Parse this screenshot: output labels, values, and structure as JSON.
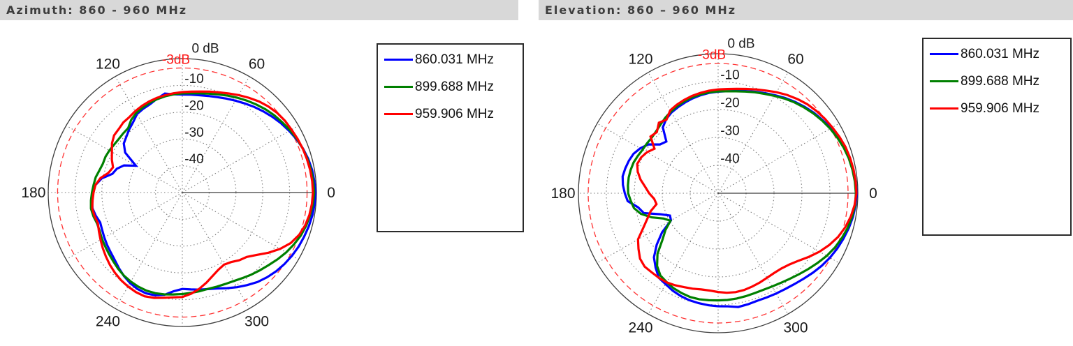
{
  "headers": {
    "azimuth": "Azimuth: 860 - 960 MHz",
    "elevation": "Elevation: 860 – 960 MHz",
    "bg_color": "#d8d8d8",
    "text_color": "#3d3d3d"
  },
  "legend": {
    "entries": [
      {
        "label": "860.031 MHz",
        "color": "#0000ff"
      },
      {
        "label": "899.688 MHz",
        "color": "#008000"
      },
      {
        "label": "959.906 MHz",
        "color": "#ff0000"
      }
    ]
  },
  "palette": {
    "grid": "#7a7a7a",
    "axis": "#3c3c3c",
    "threshold": "#ff3232",
    "threshold_text": "#ff1a1a",
    "tick_text": "#1a1a1a"
  },
  "chart_data": [
    {
      "type": "polar-line",
      "title": "Azimuth: 860 - 960 MHz",
      "angle_unit": "deg",
      "angle_ticks_deg": [
        0,
        60,
        120,
        180,
        240,
        300
      ],
      "angle_tick_labels": [
        "0",
        "60",
        "120",
        "180",
        "240",
        "300"
      ],
      "spoke_step_deg": 30,
      "r_axis": {
        "max_db": 0,
        "min_db": -50,
        "outer_label": "0 dB",
        "ticks_db": [
          -10,
          -20,
          -30,
          -40
        ],
        "tick_labels": [
          "-10",
          "-20",
          "-30",
          "-40"
        ],
        "threshold_db": -3,
        "threshold_label": "-3dB",
        "grid": "dotted rings every 10 dB, dotted spokes every 30 deg"
      },
      "angles_deg": [
        0,
        5,
        10,
        15,
        20,
        25,
        30,
        35,
        40,
        45,
        50,
        55,
        60,
        65,
        70,
        75,
        80,
        85,
        90,
        95,
        100,
        105,
        110,
        115,
        120,
        125,
        130,
        135,
        140,
        145,
        150,
        155,
        160,
        165,
        170,
        175,
        180,
        185,
        190,
        195,
        200,
        205,
        210,
        215,
        220,
        225,
        230,
        235,
        240,
        245,
        250,
        255,
        260,
        265,
        270,
        275,
        280,
        285,
        290,
        295,
        300,
        305,
        310,
        315,
        320,
        325,
        330,
        335,
        340,
        345,
        350,
        355
      ],
      "series": [
        {
          "name": "860.031 MHz",
          "color": "#0000ff",
          "db": [
            -0.4,
            -0.6,
            -0.9,
            -1.4,
            -2.1,
            -3.0,
            -4.0,
            -5.0,
            -6.1,
            -7.2,
            -8.3,
            -9.4,
            -10.4,
            -11.3,
            -12.1,
            -12.7,
            -13.1,
            -13.3,
            -13.4,
            -13.2,
            -12.5,
            -13.7,
            -14.9,
            -15.5,
            -16.2,
            -18.0,
            -19.2,
            -20.5,
            -21.5,
            -24.0,
            -30.0,
            -26.0,
            -24.0,
            -23.0,
            -19.5,
            -17.5,
            -16.6,
            -16.2,
            -16.0,
            -16.6,
            -17.4,
            -17.0,
            -16.4,
            -15.8,
            -15.2,
            -14.4,
            -13.2,
            -12.0,
            -11.0,
            -10.3,
            -10.0,
            -10.3,
            -11.2,
            -13.0,
            -14.0,
            -13.7,
            -13.2,
            -12.7,
            -11.9,
            -10.6,
            -9.2,
            -7.8,
            -6.4,
            -5.3,
            -4.3,
            -3.5,
            -2.8,
            -2.2,
            -1.7,
            -1.2,
            -0.8,
            -0.5
          ]
        },
        {
          "name": "899.688 MHz",
          "color": "#008000",
          "db": [
            -0.8,
            -1.0,
            -1.3,
            -1.7,
            -2.2,
            -2.8,
            -3.6,
            -4.4,
            -5.2,
            -6.1,
            -7.1,
            -8.1,
            -9.1,
            -10.1,
            -11.0,
            -11.8,
            -12.4,
            -12.8,
            -13.0,
            -13.2,
            -13.5,
            -13.9,
            -14.4,
            -15.0,
            -15.7,
            -16.8,
            -18.6,
            -18.8,
            -19.0,
            -18.9,
            -18.6,
            -18.4,
            -18.5,
            -18.0,
            -17.2,
            -16.8,
            -16.3,
            -15.8,
            -15.4,
            -15.7,
            -16.2,
            -16.0,
            -15.4,
            -14.9,
            -14.3,
            -13.6,
            -12.8,
            -12.1,
            -11.6,
            -11.2,
            -11.0,
            -11.1,
            -11.4,
            -11.8,
            -12.1,
            -12.4,
            -12.6,
            -12.8,
            -12.6,
            -12.3,
            -11.8,
            -11.0,
            -10.0,
            -9.0,
            -7.9,
            -6.6,
            -5.3,
            -4.1,
            -3.0,
            -2.2,
            -1.6,
            -1.1
          ]
        },
        {
          "name": "959.906 MHz",
          "color": "#ff0000",
          "db": [
            -1.3,
            -1.4,
            -1.6,
            -1.9,
            -2.2,
            -2.6,
            -3.0,
            -3.3,
            -3.8,
            -4.6,
            -5.6,
            -6.8,
            -8.0,
            -9.2,
            -10.2,
            -11.0,
            -11.7,
            -12.2,
            -12.5,
            -12.8,
            -13.1,
            -13.4,
            -13.8,
            -14.3,
            -14.9,
            -15.6,
            -15.8,
            -16.5,
            -16.8,
            -18.0,
            -19.7,
            -21.0,
            -22.5,
            -21.5,
            -19.0,
            -17.5,
            -16.9,
            -16.4,
            -15.9,
            -16.1,
            -16.5,
            -15.7,
            -14.8,
            -13.8,
            -12.8,
            -11.8,
            -10.9,
            -10.1,
            -9.5,
            -9.0,
            -8.8,
            -9.3,
            -10.1,
            -10.7,
            -11.0,
            -12.1,
            -13.5,
            -15.2,
            -16.9,
            -18.2,
            -18.9,
            -18.3,
            -17.0,
            -16.0,
            -13.8,
            -10.8,
            -7.9,
            -5.4,
            -3.7,
            -2.6,
            -1.9,
            -1.5
          ]
        }
      ]
    },
    {
      "type": "polar-line",
      "title": "Elevation: 860 – 960 MHz",
      "angle_unit": "deg",
      "angle_ticks_deg": [
        0,
        60,
        120,
        180,
        240,
        300
      ],
      "angle_tick_labels": [
        "0",
        "60",
        "120",
        "180",
        "240",
        "300"
      ],
      "spoke_step_deg": 30,
      "r_axis": {
        "max_db": 0,
        "min_db": -50,
        "outer_label": "0 dB",
        "ticks_db": [
          -10,
          -20,
          -30,
          -40
        ],
        "tick_labels": [
          "-10",
          "-20",
          "-30",
          "-40"
        ],
        "threshold_db": -3,
        "threshold_label": "-3dB",
        "grid": "dotted rings every 10 dB, dotted spokes every 30 deg"
      },
      "angles_deg": [
        0,
        5,
        10,
        15,
        20,
        25,
        30,
        35,
        40,
        45,
        50,
        55,
        60,
        65,
        70,
        75,
        80,
        85,
        90,
        95,
        100,
        105,
        110,
        115,
        120,
        125,
        130,
        135,
        140,
        145,
        150,
        155,
        160,
        165,
        170,
        175,
        180,
        185,
        190,
        195,
        200,
        205,
        210,
        215,
        220,
        225,
        230,
        235,
        240,
        245,
        250,
        255,
        260,
        265,
        270,
        275,
        280,
        285,
        290,
        295,
        300,
        305,
        310,
        315,
        320,
        325,
        330,
        335,
        340,
        345,
        350,
        355
      ],
      "series": [
        {
          "name": "860.031 MHz",
          "color": "#0000ff",
          "db": [
            -0.4,
            -0.6,
            -0.9,
            -1.3,
            -1.9,
            -2.6,
            -3.4,
            -4.3,
            -5.2,
            -6.2,
            -7.2,
            -8.3,
            -9.4,
            -10.4,
            -11.3,
            -12.1,
            -12.8,
            -13.3,
            -13.6,
            -13.9,
            -14.3,
            -14.8,
            -15.4,
            -16.0,
            -16.6,
            -17.6,
            -19.2,
            -23.8,
            -22.8,
            -19.5,
            -17.8,
            -16.6,
            -16.0,
            -15.6,
            -15.3,
            -15.8,
            -16.6,
            -17.5,
            -20.9,
            -22.5,
            -28.0,
            -31.0,
            -30.5,
            -25.5,
            -21.3,
            -17.5,
            -15.2,
            -13.0,
            -12.4,
            -11.5,
            -10.8,
            -10.3,
            -10.0,
            -9.7,
            -9.5,
            -9.3,
            -8.6,
            -8.8,
            -9.0,
            -8.8,
            -8.5,
            -8.1,
            -7.5,
            -6.7,
            -5.7,
            -4.7,
            -3.8,
            -3.0,
            -2.3,
            -1.6,
            -1.0,
            -0.6
          ]
        },
        {
          "name": "899.688 MHz",
          "color": "#008000",
          "db": [
            -0.7,
            -0.9,
            -1.2,
            -1.6,
            -2.2,
            -2.9,
            -3.7,
            -4.6,
            -5.5,
            -6.5,
            -7.5,
            -8.6,
            -9.7,
            -10.7,
            -11.5,
            -12.3,
            -12.9,
            -13.3,
            -13.5,
            -13.7,
            -14.0,
            -14.4,
            -14.9,
            -15.5,
            -16.2,
            -17.0,
            -17.9,
            -18.6,
            -19.0,
            -18.9,
            -18.8,
            -18.3,
            -17.8,
            -17.6,
            -17.5,
            -17.6,
            -17.8,
            -18.6,
            -19.4,
            -21.4,
            -24.7,
            -28.5,
            -30.3,
            -27.0,
            -24.0,
            -19.3,
            -16.0,
            -14.0,
            -13.2,
            -12.4,
            -11.9,
            -11.5,
            -11.4,
            -11.5,
            -11.6,
            -11.6,
            -11.7,
            -11.8,
            -11.9,
            -11.8,
            -11.4,
            -10.8,
            -10.0,
            -9.0,
            -7.8,
            -6.5,
            -5.1,
            -3.9,
            -2.9,
            -2.0,
            -1.3,
            -0.8
          ]
        },
        {
          "name": "959.906 MHz",
          "color": "#ff0000",
          "db": [
            -0.5,
            -0.6,
            -0.8,
            -1.1,
            -1.5,
            -2.1,
            -2.8,
            -3.4,
            -4.1,
            -4.9,
            -5.9,
            -7.0,
            -8.2,
            -9.4,
            -10.4,
            -11.3,
            -12.0,
            -12.5,
            -12.8,
            -13.1,
            -13.5,
            -13.9,
            -14.4,
            -15.0,
            -15.7,
            -17.8,
            -17.0,
            -19.0,
            -18.4,
            -22.2,
            -20.6,
            -19.6,
            -19.2,
            -20.2,
            -21.8,
            -23.8,
            -25.3,
            -27.0,
            -27.6,
            -25.0,
            -23.0,
            -20.4,
            -16.9,
            -15.2,
            -13.5,
            -12.8,
            -13.0,
            -13.0,
            -13.1,
            -13.6,
            -14.2,
            -14.6,
            -15.0,
            -15.0,
            -14.6,
            -14.2,
            -14.0,
            -14.1,
            -14.4,
            -14.7,
            -15.0,
            -15.1,
            -14.8,
            -13.9,
            -12.4,
            -10.3,
            -8.1,
            -6.1,
            -4.3,
            -2.9,
            -1.8,
            -1.0
          ]
        }
      ]
    }
  ]
}
